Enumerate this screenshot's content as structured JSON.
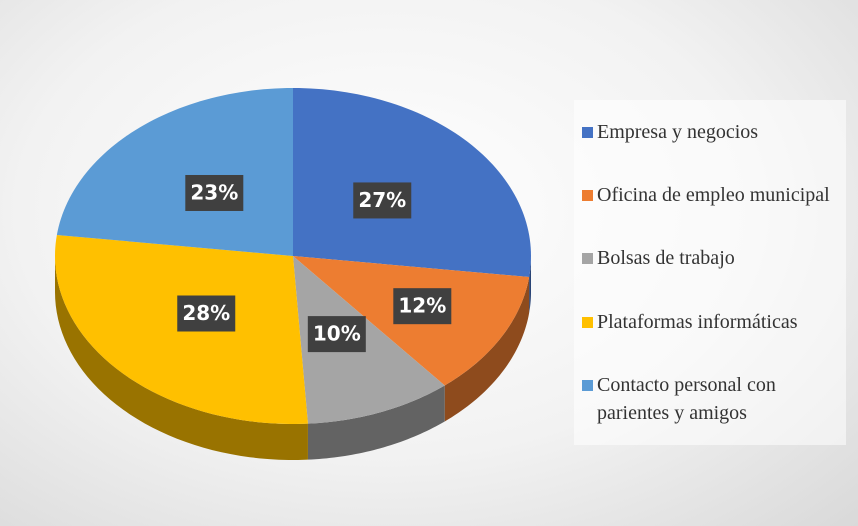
{
  "chart_data": {
    "type": "pie",
    "categories": [
      "Empresa y negocios",
      "Oficina de empleo municipal",
      "Bolsas de trabajo",
      "Plataformas informáticas",
      "Contacto personal con parientes y amigos"
    ],
    "values": [
      27,
      12,
      10,
      28,
      23
    ],
    "value_labels": [
      "27%",
      "12%",
      "10%",
      "28%",
      "23%"
    ],
    "colors": [
      "#4472c4",
      "#ed7d31",
      "#a5a5a5",
      "#ffc000",
      "#5b9bd5"
    ],
    "legend": "right"
  }
}
